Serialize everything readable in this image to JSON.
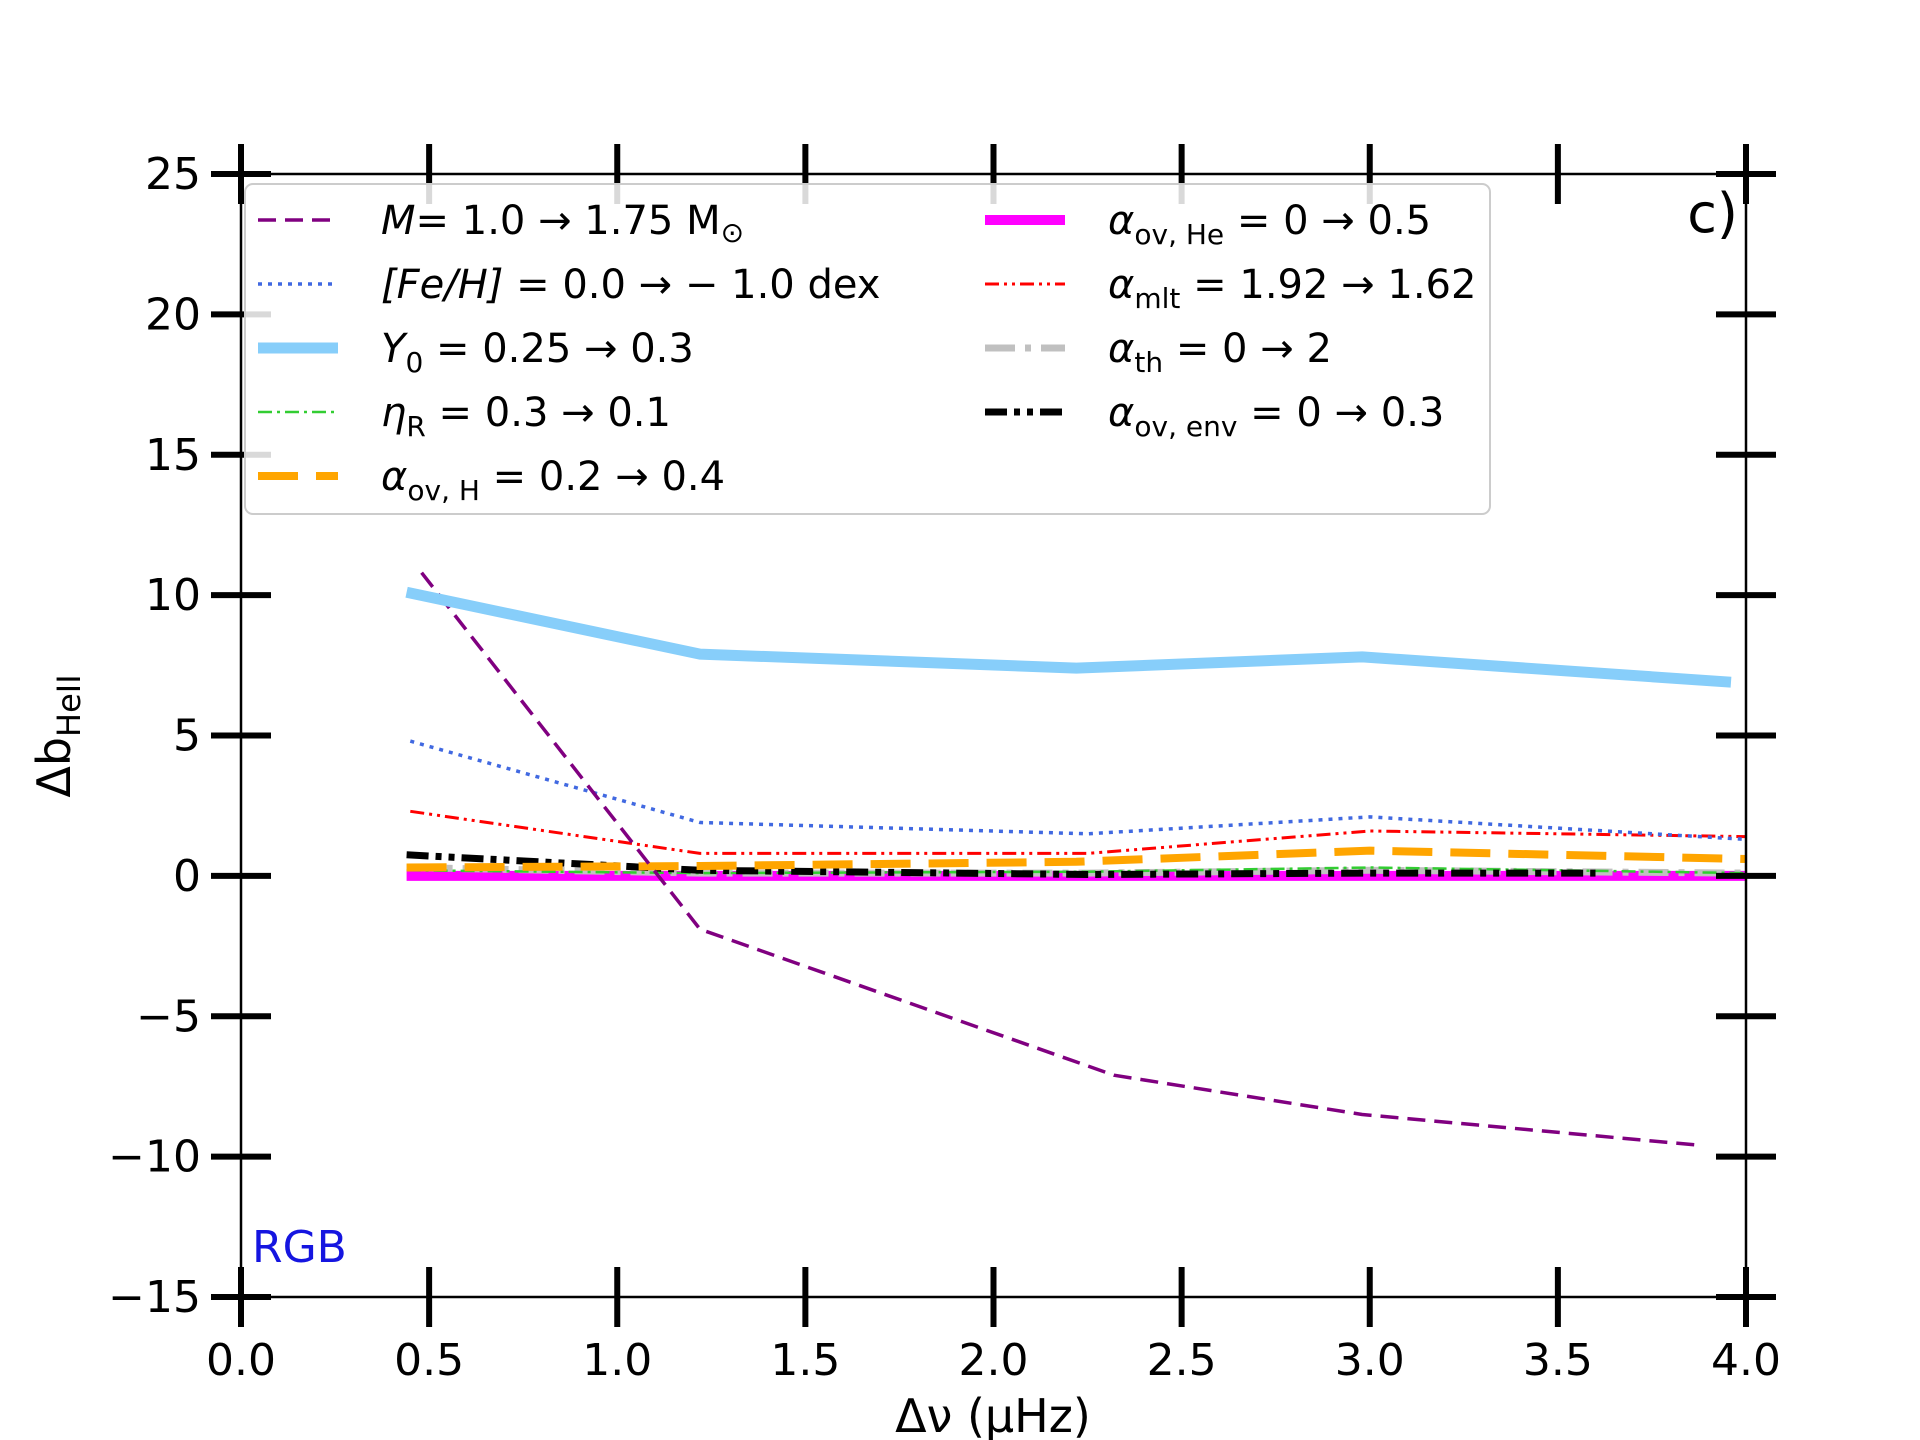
{
  "chart_data": {
    "type": "line",
    "panel_label": "c)",
    "annotation": "RGB",
    "annotation_color": "#1515e0",
    "x_axis": {
      "label": "Δν (μHz)",
      "lim": [
        0.0,
        4.0
      ],
      "ticks": [
        0.0,
        0.5,
        1.0,
        1.5,
        2.0,
        2.5,
        3.0,
        3.5,
        4.0
      ],
      "tick_labels": [
        "0.0",
        "0.5",
        "1.0",
        "1.5",
        "2.0",
        "2.5",
        "3.0",
        "3.5",
        "4.0"
      ]
    },
    "y_axis": {
      "label": "Δb_HeII",
      "label_main": "Δb",
      "label_sub": "HeII",
      "lim": [
        -15,
        25
      ],
      "ticks": [
        -15,
        -10,
        -5,
        0,
        5,
        10,
        15,
        20,
        25
      ],
      "tick_labels": [
        "−15",
        "−10",
        "−5",
        "0",
        "5",
        "10",
        "15",
        "20",
        "25"
      ]
    },
    "grid": false,
    "legend_position": "upper-left",
    "series": [
      {
        "key": "mass",
        "legend": {
          "lhs": "M",
          "rhs": "= 1.0 → 1.75 M",
          "sub": "",
          "suffix_sym": "⊙"
        },
        "color": "#800080",
        "dash": "18,9",
        "width": 3.5,
        "x": [
          0.48,
          1.22,
          2.32,
          2.98,
          3.88
        ],
        "y": [
          10.8,
          -1.9,
          -7.1,
          -8.5,
          -9.6
        ]
      },
      {
        "key": "feh",
        "legend": {
          "lhs": "[Fe/H]",
          "rhs": " = 0.0  →  − 1.0 dex",
          "sub": "",
          "suffix_sym": ""
        },
        "color": "#4169e1",
        "dash": "4,6",
        "width": 3.5,
        "x": [
          0.45,
          1.22,
          2.25,
          3.0,
          4.0
        ],
        "y": [
          4.8,
          1.9,
          1.5,
          2.1,
          1.3
        ]
      },
      {
        "key": "y0",
        "legend": {
          "lhs": "Y",
          "rhs": " = 0.25 → 0.3",
          "sub": "0",
          "suffix_sym": ""
        },
        "color": "#87cefa",
        "dash": "",
        "width": 11,
        "x": [
          0.44,
          1.22,
          2.22,
          2.98,
          3.96
        ],
        "y": [
          10.1,
          7.9,
          7.4,
          7.8,
          6.9
        ]
      },
      {
        "key": "eta",
        "legend": {
          "lhs": "η",
          "rhs": " = 0.3 → 0.1",
          "sub": "R",
          "suffix_sym": ""
        },
        "color": "#32cd32",
        "dash": "14,5,3,5",
        "width": 2.5,
        "x": [
          0.44,
          1.22,
          2.25,
          3.0,
          4.0
        ],
        "y": [
          0.2,
          0.1,
          0.15,
          0.3,
          0.1
        ]
      },
      {
        "key": "ovH",
        "legend": {
          "lhs": "α",
          "rhs": " = 0.2 → 0.4",
          "sub": "ov, H",
          "suffix_sym": ""
        },
        "color": "#ffa500",
        "dash": "40,18",
        "width": 8,
        "x": [
          0.44,
          1.22,
          2.22,
          3.0,
          4.0
        ],
        "y": [
          0.3,
          0.35,
          0.5,
          0.9,
          0.6
        ]
      },
      {
        "key": "ovHe",
        "legend": {
          "lhs": "α",
          "rhs": " = 0 → 0.5",
          "sub": "ov, He",
          "suffix_sym": ""
        },
        "color": "#ff00ff",
        "dash": "",
        "width": 10,
        "x": [
          0.44,
          1.22,
          2.22,
          3.0,
          4.0
        ],
        "y": [
          0.0,
          0.0,
          0.0,
          0.0,
          0.0
        ]
      },
      {
        "key": "mlt",
        "legend": {
          "lhs": "α",
          "rhs": " = 1.92 → 1.62",
          "sub": "mlt",
          "suffix_sym": ""
        },
        "color": "#ff0000",
        "dash": "14,5,3,5,3,5",
        "width": 3,
        "x": [
          0.45,
          1.22,
          2.25,
          3.0,
          4.0
        ],
        "y": [
          2.3,
          0.8,
          0.8,
          1.6,
          1.4
        ]
      },
      {
        "key": "th",
        "legend": {
          "lhs": "α",
          "rhs": " = 0 → 2",
          "sub": "th",
          "suffix_sym": ""
        },
        "color": "#c0c0c0",
        "dash": "30,10,6,10",
        "width": 7,
        "x": [
          0.44,
          1.22,
          2.25,
          3.0,
          4.0
        ],
        "y": [
          0.3,
          0.1,
          0.1,
          0.2,
          0.1
        ]
      },
      {
        "key": "ovenv",
        "legend": {
          "lhs": "α",
          "rhs": " = 0 → 0.3",
          "sub": "ov, env",
          "suffix_sym": ""
        },
        "color": "#000000",
        "dash": "22,7,6,7,6,7",
        "width": 7,
        "x": [
          0.44,
          1.22,
          2.25,
          3.0,
          3.6
        ],
        "y": [
          0.75,
          0.2,
          0.05,
          0.1,
          0.1
        ]
      }
    ],
    "legend_columns": [
      [
        "mass",
        "feh",
        "y0",
        "eta",
        "ovH"
      ],
      [
        "ovHe",
        "mlt",
        "th",
        "ovenv"
      ]
    ]
  }
}
